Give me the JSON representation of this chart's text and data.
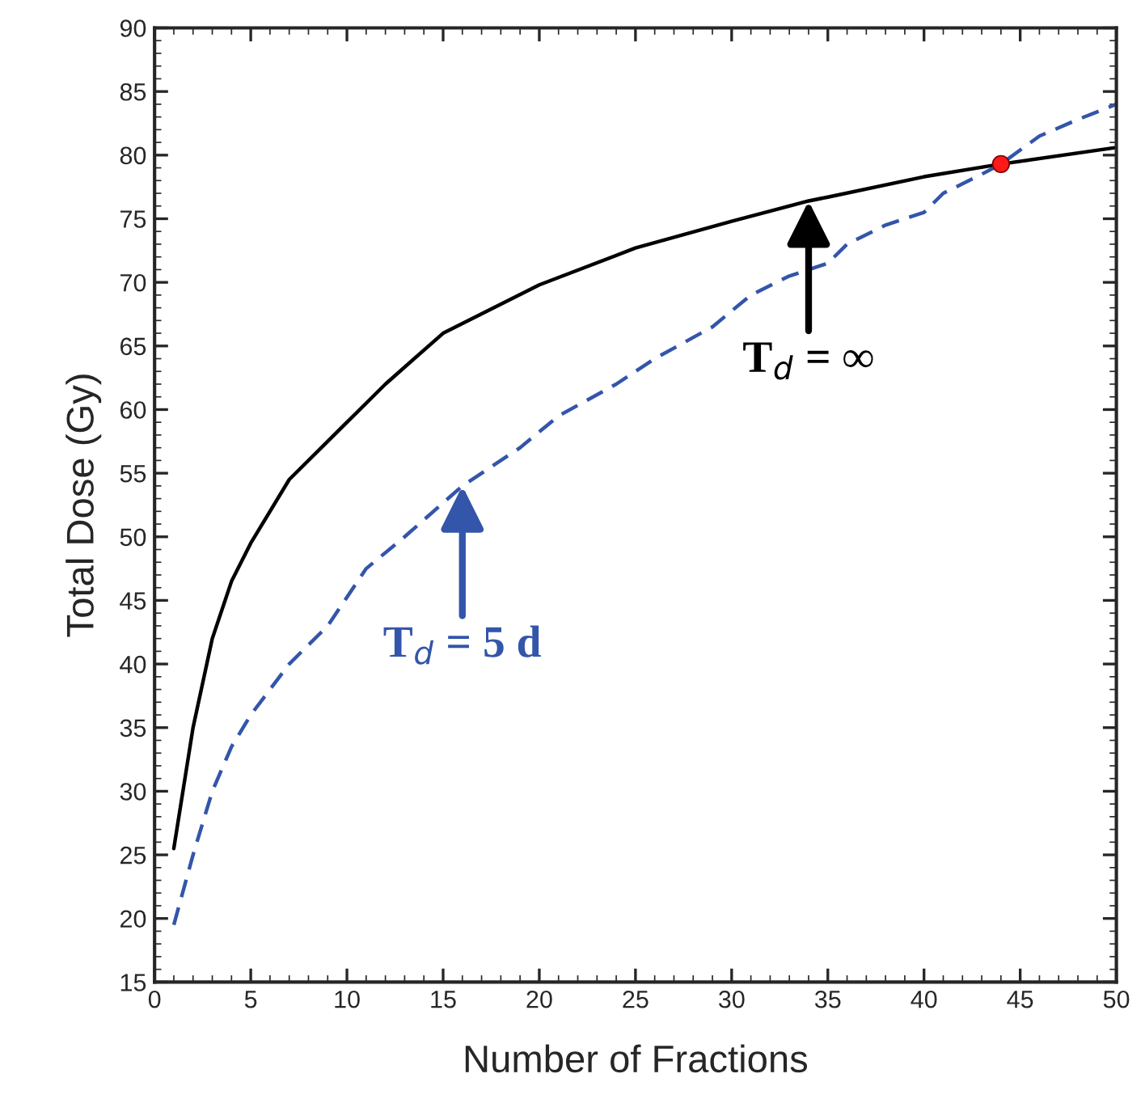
{
  "chart_data": {
    "type": "line",
    "xlabel": "Number of Fractions",
    "ylabel": "Total Dose (Gy)",
    "xlim": [
      0,
      50
    ],
    "xticks": [
      0,
      5,
      10,
      15,
      20,
      25,
      30,
      35,
      40,
      45,
      50
    ],
    "ylim": [
      15,
      90
    ],
    "yticks": [
      15,
      20,
      25,
      30,
      35,
      40,
      45,
      50,
      55,
      60,
      65,
      70,
      75,
      80,
      85,
      90
    ],
    "grid": false,
    "legend": false,
    "series": [
      {
        "color": "#000000",
        "line_style": "solid",
        "x": [
          1,
          2,
          3,
          4,
          5,
          7,
          10,
          12,
          15,
          20,
          25,
          30,
          34,
          35,
          40,
          44,
          50
        ],
        "values": [
          25.5,
          35,
          42,
          46.5,
          49.5,
          54.5,
          59,
          62,
          66,
          69.8,
          72.7,
          74.8,
          76.4,
          76.7,
          78.3,
          79.3,
          80.6
        ]
      },
      {
        "color": "#3355aa",
        "line_style": "dashed",
        "x": [
          1,
          2,
          3,
          4,
          5,
          7,
          9,
          11,
          13,
          16,
          19,
          21,
          24,
          26,
          29,
          31,
          33,
          35,
          36,
          38,
          40,
          41,
          43,
          44,
          46,
          48,
          50
        ],
        "values": [
          19.5,
          25,
          30,
          33.5,
          36,
          40,
          43,
          47.5,
          50,
          54,
          57,
          59.5,
          62,
          64,
          66.5,
          69,
          70.5,
          71.5,
          73,
          74.5,
          75.5,
          77,
          78.5,
          79.3,
          81.5,
          82.8,
          84
        ]
      },
      {
        "type": "scatter",
        "color": "#ff1a1a",
        "marker": "circle",
        "x": [
          44
        ],
        "values": [
          79.3
        ]
      }
    ],
    "annotations": [
      {
        "text": "T$_{d}$ = ∞",
        "x": 34,
        "y": 76.4
      },
      {
        "text": "T$_{d}$ = 5 d",
        "x": 16,
        "y": 54
      }
    ]
  }
}
